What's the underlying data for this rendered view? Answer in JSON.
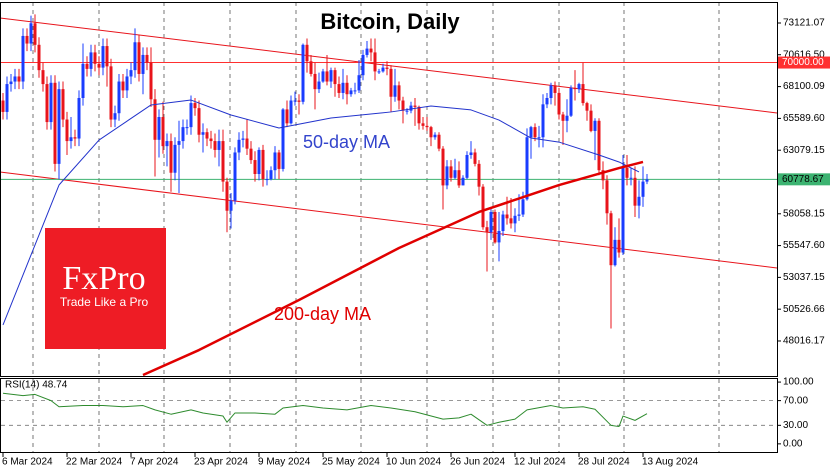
{
  "chart_data": {
    "type": "candlestick",
    "title": "Bitcoin, Daily",
    "up_color": "#1a3cff",
    "down_color": "#e8141b",
    "ylim": [
      45330,
      74780
    ],
    "yticks": [
      {
        "value": 73121.07,
        "label": "73121.07"
      },
      {
        "value": 70616.5,
        "label": "70616.50"
      },
      {
        "value": 68100.09,
        "label": "68100.09"
      },
      {
        "value": 65589.6,
        "label": "65589.60"
      },
      {
        "value": 63079.15,
        "label": "63079.15"
      },
      {
        "value": 58058.15,
        "label": "58058.15"
      },
      {
        "value": 55547.6,
        "label": "55547.60"
      },
      {
        "value": 53037.15,
        "label": "53037.15"
      },
      {
        "value": 50526.66,
        "label": "50526.66"
      },
      {
        "value": 48016.17,
        "label": "48016.17"
      }
    ],
    "xticks": [
      {
        "value": 0,
        "label": "6 Mar 2024"
      },
      {
        "value": 16,
        "label": "22 Mar 2024"
      },
      {
        "value": 32,
        "label": "7 Apr 2024"
      },
      {
        "value": 48,
        "label": "23 Apr 2024"
      },
      {
        "value": 64,
        "label": "9 May 2024"
      },
      {
        "value": 80,
        "label": "25 May 2024"
      },
      {
        "value": 96,
        "label": "10 Jun 2024"
      },
      {
        "value": 112,
        "label": "26 Jun 2024"
      },
      {
        "value": 128,
        "label": "12 Jul 2024"
      },
      {
        "value": 144,
        "label": "28 Jul 2024"
      },
      {
        "value": 160,
        "label": "13 Aug 2024"
      }
    ],
    "open": [
      67000,
      66100,
      68300,
      68500,
      68900,
      68500,
      72100,
      71500,
      73100,
      71400,
      69400,
      68300,
      65300,
      68400,
      62000,
      67900,
      65500,
      63800,
      64100,
      64000,
      67200,
      69900,
      69500,
      70800,
      69900,
      69600,
      71300,
      69700,
      65500,
      66000,
      68500,
      67800,
      68900,
      69400,
      71600,
      69100,
      70600,
      70000,
      67100,
      63900,
      65700,
      63400,
      63800,
      61300,
      63500,
      63800,
      64900,
      64900,
      66800,
      66400,
      64300,
      64500,
      64000,
      63800,
      63100,
      63800,
      60600,
      58300,
      59100,
      62900,
      63900,
      64000,
      63200,
      62300,
      61200,
      63100,
      60800,
      60800,
      61500,
      62900,
      61600,
      66300,
      65200,
      67000,
      67000,
      66900,
      71400,
      70100,
      69100,
      67900,
      68500,
      69300,
      68500,
      69400,
      68300,
      67600,
      68400,
      67500,
      67800,
      67800,
      69000,
      70600,
      71100,
      70800,
      69300,
      69300,
      69600,
      69500,
      67300,
      68200,
      67000,
      66200,
      66200,
      66600,
      66500,
      65200,
      65000,
      64900,
      64100,
      64300,
      63200,
      60300,
      61800,
      60900,
      61500,
      60300,
      60900,
      62700,
      62900,
      62000,
      60200,
      57000,
      56600,
      58200,
      55800,
      56700,
      58000,
      57700,
      57300,
      57900,
      58000,
      59200,
      64100,
      64900,
      64100,
      64100,
      66700,
      67200,
      68200,
      67600,
      65900,
      65400,
      65800,
      68000,
      67900,
      68300,
      66800,
      66200,
      64600,
      65400,
      61500,
      60700,
      58100,
      54000,
      56000,
      55000,
      61700,
      60900,
      60900,
      58700,
      59400,
      60600
    ],
    "high": [
      67600,
      68900,
      69100,
      69500,
      69500,
      72700,
      72700,
      73700,
      73800,
      72000,
      70000,
      68900,
      69000,
      69000,
      68500,
      68500,
      66100,
      65700,
      64700,
      67800,
      71500,
      70500,
      71400,
      71400,
      70500,
      71900,
      71900,
      70300,
      66600,
      69100,
      69100,
      69500,
      70000,
      72700,
      72200,
      71200,
      71200,
      71200,
      67900,
      66300,
      66900,
      64400,
      64400,
      64100,
      65400,
      65500,
      65500,
      67400,
      67200,
      67000,
      65200,
      64800,
      64600,
      64400,
      64700,
      64700,
      60900,
      59700,
      63300,
      64500,
      64600,
      65500,
      63800,
      63000,
      63300,
      63500,
      61500,
      61800,
      63400,
      63100,
      66400,
      67000,
      67400,
      67700,
      67500,
      71500,
      71900,
      70600,
      70000,
      69200,
      69500,
      70600,
      69600,
      69600,
      68900,
      69500,
      69000,
      68000,
      68400,
      70200,
      71000,
      71700,
      71900,
      71900,
      69500,
      69900,
      70100,
      69800,
      69500,
      68500,
      67300,
      66400,
      66900,
      67200,
      66600,
      65700,
      65700,
      65000,
      64500,
      64500,
      63400,
      62300,
      62300,
      62400,
      62200,
      61100,
      63000,
      63800,
      63200,
      62300,
      60400,
      57500,
      58500,
      58400,
      58200,
      58300,
      59400,
      59300,
      58500,
      59600,
      59800,
      64800,
      65000,
      65200,
      65000,
      67500,
      67600,
      68400,
      68500,
      68000,
      66100,
      67100,
      68200,
      69400,
      68400,
      70000,
      66900,
      66700,
      65600,
      65600,
      62200,
      61100,
      58300,
      57000,
      57700,
      62700,
      62700,
      61700,
      61800,
      60700,
      61800,
      61200
    ],
    "low": [
      65500,
      65500,
      67700,
      67900,
      67900,
      67900,
      70900,
      70900,
      70800,
      68800,
      67700,
      64700,
      64700,
      61400,
      60800,
      64900,
      62700,
      63200,
      63400,
      63400,
      66600,
      68900,
      68900,
      69300,
      69000,
      69000,
      68100,
      64900,
      64900,
      65400,
      67200,
      67200,
      68300,
      68800,
      68500,
      67500,
      69400,
      66500,
      61000,
      62500,
      62800,
      61800,
      59800,
      60700,
      59700,
      63200,
      64300,
      64300,
      65800,
      63700,
      62900,
      63400,
      63200,
      62500,
      61800,
      59800,
      56600,
      56900,
      58800,
      62300,
      63300,
      62700,
      62000,
      60600,
      60700,
      60200,
      60300,
      60700,
      60800,
      60800,
      61400,
      64900,
      65100,
      66600,
      65900,
      66700,
      69200,
      68900,
      66300,
      67600,
      68400,
      68200,
      68000,
      67300,
      67200,
      67100,
      66700,
      67300,
      67500,
      67600,
      68600,
      70400,
      70100,
      68600,
      69100,
      69200,
      69000,
      66100,
      66900,
      66300,
      65200,
      65900,
      66000,
      65000,
      64700,
      64700,
      64600,
      63400,
      63900,
      63000,
      58400,
      60000,
      60600,
      60800,
      60100,
      60300,
      60800,
      62400,
      61800,
      59500,
      56800,
      53500,
      56000,
      55700,
      54300,
      56300,
      57200,
      56900,
      56600,
      57500,
      57800,
      59100,
      62400,
      63800,
      63300,
      63300,
      66400,
      66700,
      66600,
      65500,
      63500,
      64500,
      65700,
      67000,
      67600,
      66600,
      65400,
      64500,
      62300,
      61100,
      60000,
      57200,
      49000,
      53900,
      54600,
      54800,
      60300,
      60300,
      57800,
      57700,
      58600,
      60400
    ],
    "close": [
      66100,
      68300,
      68500,
      68900,
      68500,
      72100,
      71500,
      73100,
      71400,
      69400,
      68300,
      65300,
      68400,
      62000,
      67900,
      65500,
      63800,
      64100,
      64000,
      67200,
      69900,
      69500,
      70800,
      69900,
      69600,
      71300,
      69700,
      65500,
      66000,
      68500,
      67800,
      68900,
      69400,
      71600,
      69100,
      70600,
      70000,
      67100,
      63900,
      65700,
      63400,
      63800,
      61300,
      63500,
      63800,
      64900,
      64900,
      66800,
      66400,
      64300,
      64500,
      64000,
      63800,
      63100,
      63800,
      60600,
      58300,
      59100,
      62900,
      63900,
      64000,
      63200,
      62300,
      61200,
      63100,
      60800,
      60800,
      61500,
      62900,
      61600,
      66300,
      65200,
      67000,
      67000,
      66900,
      71400,
      70100,
      69100,
      67900,
      68500,
      69300,
      68500,
      69400,
      68300,
      67600,
      68400,
      67500,
      67800,
      67800,
      69000,
      70600,
      71100,
      70800,
      69300,
      69300,
      69600,
      69500,
      67300,
      68200,
      67000,
      66200,
      66200,
      66600,
      66500,
      65200,
      65000,
      64900,
      64100,
      64300,
      63200,
      60300,
      61800,
      60900,
      61500,
      60300,
      60900,
      62700,
      62900,
      62000,
      60200,
      57000,
      56600,
      58200,
      55800,
      56700,
      58000,
      57700,
      57300,
      57900,
      58000,
      59200,
      64100,
      64900,
      64100,
      64100,
      66700,
      67200,
      68200,
      67600,
      65900,
      65400,
      65800,
      68000,
      67900,
      68300,
      66800,
      66200,
      64600,
      65400,
      61500,
      60700,
      58100,
      54000,
      56000,
      55000,
      61700,
      60900,
      60900,
      58700,
      59400,
      60600,
      60778.67
    ],
    "ma_lines": [
      {
        "name": "50-day MA",
        "color": "#2233cc",
        "width": 1,
        "x": [
          0,
          14,
          24,
          37,
          47,
          57,
          69,
          82,
          97,
          107,
          117,
          124,
          132,
          139,
          149,
          154,
          159
        ],
        "values": [
          49280,
          60330,
          63880,
          66650,
          67040,
          65860,
          64830,
          65620,
          66100,
          66570,
          66260,
          65460,
          64040,
          63720,
          62700,
          62150,
          61360
        ]
      },
      {
        "name": "200-day MA",
        "color": "#e00000",
        "width": 2.5,
        "x": [
          35,
          49,
          74,
          99,
          119,
          139,
          154,
          160
        ],
        "values": [
          45330,
          47300,
          51250,
          55360,
          58200,
          60330,
          61670,
          62150
        ]
      }
    ],
    "hlines": [
      {
        "value": 70000,
        "label": "70000.00",
        "color": "#ff3030",
        "text_color": "#ffffff"
      },
      {
        "value": 60778.67,
        "label": "60778.67",
        "color": "#3cb371",
        "text_color": "#000000"
      }
    ],
    "logo": {
      "brand": "FxPro",
      "tagline": "Trade Like a Pro"
    },
    "rsi": {
      "title": "RSI(14) 48.74",
      "color": "#2e8b2e",
      "ylim": [
        -14.8,
        106.6
      ],
      "yticks": [
        {
          "value": 100,
          "label": "100.00"
        },
        {
          "value": 70,
          "label": "70.00"
        },
        {
          "value": 30,
          "label": "30.00"
        },
        {
          "value": 0,
          "label": "0.00"
        }
      ],
      "levels": [
        70,
        30
      ],
      "x": [
        0,
        5,
        8,
        12,
        14,
        20,
        25,
        30,
        35,
        38,
        42,
        47,
        50,
        55,
        56,
        58,
        63,
        68,
        70,
        75,
        80,
        86,
        92,
        97,
        103,
        110,
        114,
        117,
        121,
        124,
        128,
        131,
        137,
        140,
        145,
        148,
        152,
        154,
        155,
        158,
        161
      ],
      "values": [
        82,
        78,
        80,
        70,
        60,
        62,
        62,
        60,
        62,
        55,
        48,
        55,
        50,
        45,
        35,
        50,
        50,
        48,
        58,
        62,
        58,
        55,
        62,
        58,
        52,
        40,
        42,
        48,
        30,
        35,
        40,
        55,
        62,
        58,
        60,
        56,
        30,
        28,
        45,
        38,
        48.74
      ]
    }
  }
}
